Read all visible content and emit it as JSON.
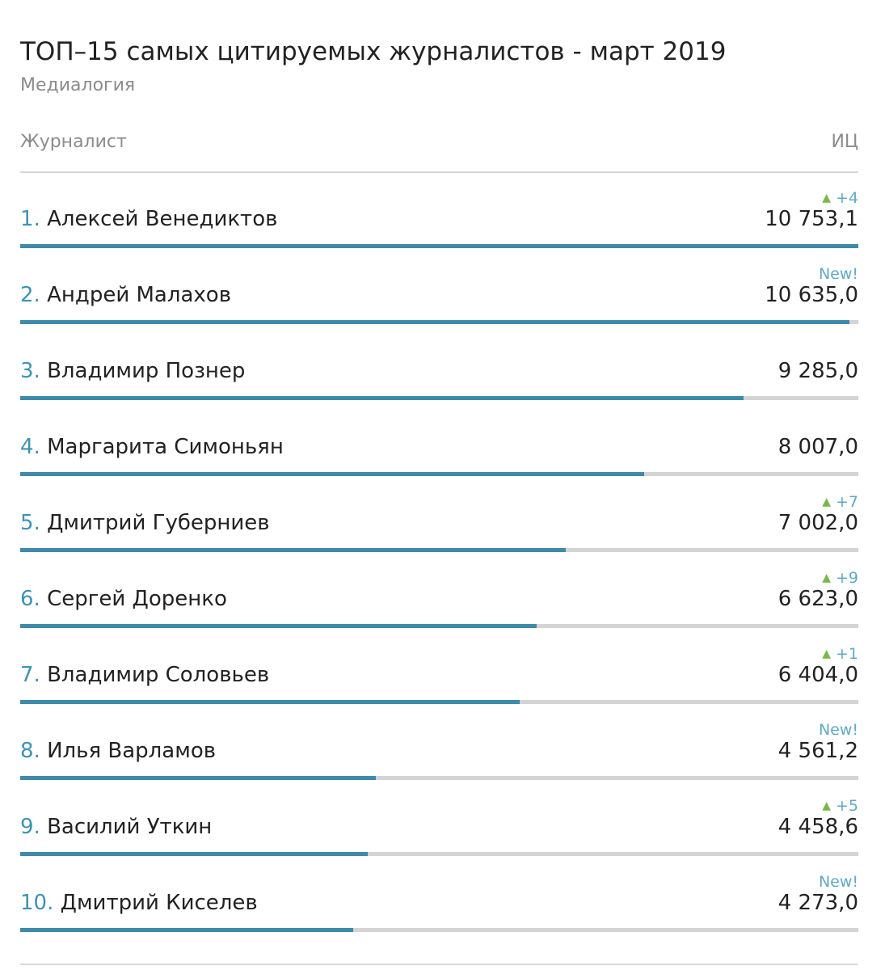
{
  "chart_data": {
    "type": "bar",
    "orientation": "horizontal",
    "title": "ТОП–15 самых цитируемых журналистов - март 2019",
    "subtitle": "Медиалогия",
    "column_headers": {
      "name": "Журналист",
      "value": "ИЦ"
    },
    "xlim": [
      0,
      10753.1
    ],
    "rows": [
      {
        "rank": "1.",
        "name": "Алексей Венедиктов",
        "value": 10753.1,
        "value_text": "10 753,1",
        "change": "+4",
        "is_new": false
      },
      {
        "rank": "2.",
        "name": "Андрей Малахов",
        "value": 10635.0,
        "value_text": "10 635,0",
        "change": "New!",
        "is_new": true
      },
      {
        "rank": "3.",
        "name": "Владимир Познер",
        "value": 9285.0,
        "value_text": "9 285,0",
        "change": "",
        "is_new": false
      },
      {
        "rank": "4.",
        "name": "Маргарита Симоньян",
        "value": 8007.0,
        "value_text": "8 007,0",
        "change": "",
        "is_new": false
      },
      {
        "rank": "5.",
        "name": "Дмитрий Губерниев",
        "value": 7002.0,
        "value_text": "7 002,0",
        "change": "+7",
        "is_new": false
      },
      {
        "rank": "6.",
        "name": "Сергей Доренко",
        "value": 6623.0,
        "value_text": "6 623,0",
        "change": "+9",
        "is_new": false
      },
      {
        "rank": "7.",
        "name": "Владимир Соловьев",
        "value": 6404.0,
        "value_text": "6 404,0",
        "change": "+1",
        "is_new": false
      },
      {
        "rank": "8.",
        "name": "Илья Варламов",
        "value": 4561.2,
        "value_text": "4 561,2",
        "change": "New!",
        "is_new": true
      },
      {
        "rank": "9.",
        "name": "Василий Уткин",
        "value": 4458.6,
        "value_text": "4 458,6",
        "change": "+5",
        "is_new": false
      },
      {
        "rank": "10.",
        "name": "Дмитрий Киселев",
        "value": 4273.0,
        "value_text": "4 273,0",
        "change": "New!",
        "is_new": true
      }
    ],
    "colors": {
      "bar": "#3e8aa9",
      "track": "#d4d4d4",
      "rank": "#3f93b2",
      "badge": "#62a9c2",
      "up_arrow": "#78b84c"
    },
    "icons": {
      "up": "triangle-up-icon"
    }
  }
}
